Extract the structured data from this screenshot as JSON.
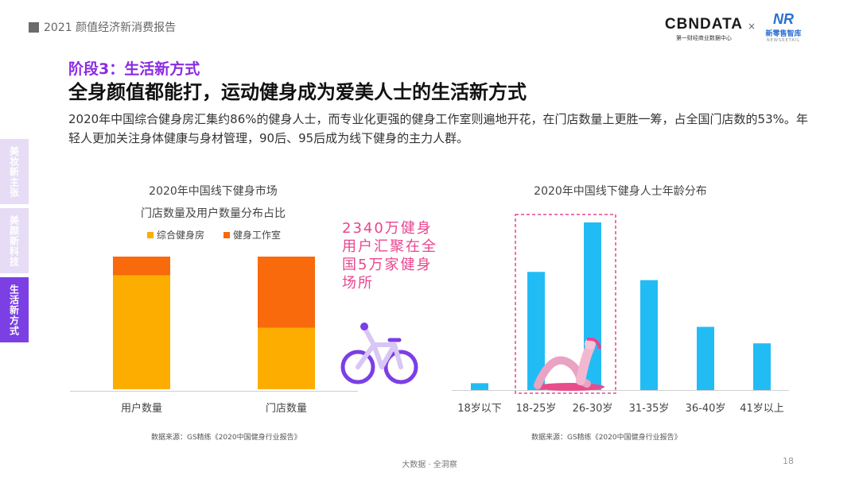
{
  "header": {
    "report_title": "2021 颜值经济新消费报告",
    "logo_main": "CBNDATA",
    "logo_sub": "第一财经商业数据中心",
    "logo_separator": "×",
    "partner_mark": "NR",
    "partner_name": "新零售智库",
    "partner_en": "NEWSRETAIL"
  },
  "side_tabs": [
    {
      "label": "美妆新主张",
      "active": false
    },
    {
      "label": "美颜新科技",
      "active": false
    },
    {
      "label": "生活新方式",
      "active": true
    }
  ],
  "content": {
    "stage": "阶段3：生活新方式",
    "headline": "全身颜值都能打，运动健身成为爱美人士的生活新方式",
    "body": "2020年中国综合健身房汇集约86%的健身人士，而专业化更强的健身工作室则遍地开花，在门店数量上更胜一筹，占全国门店数的53%。年轻人更加关注身体健康与身材管理，90后、95后成为线下健身的主力人群。"
  },
  "callout": "2340万健身用户汇聚在全国5万家健身场所",
  "colors": {
    "gym": "#FCAD00",
    "studio": "#F86A0C",
    "age_bar": "#22BCF5",
    "accent": "#7B3FE4",
    "callout": "#E9458F"
  },
  "chart_data": [
    {
      "type": "bar",
      "stacked": true,
      "title": "2020年中国线下健身市场",
      "subtitle": "门店数量及用户数量分布占比",
      "categories": [
        "用户数量",
        "门店数量"
      ],
      "series": [
        {
          "name": "综合健身房",
          "values": [
            86,
            47
          ]
        },
        {
          "name": "健身工作室",
          "values": [
            14,
            53
          ]
        }
      ],
      "ylim": [
        0,
        100
      ],
      "legend": "top",
      "source": "数据来源：GS精练《2020中国健身行业报告》"
    },
    {
      "type": "bar",
      "title": "2020年中国线下健身人士年龄分布",
      "categories": [
        "18岁以下",
        "18-25岁",
        "26-30岁",
        "31-35岁",
        "36-40岁",
        "41岁以上"
      ],
      "values": [
        2.5,
        43,
        61,
        40,
        23,
        17
      ],
      "highlight": [
        "18-25岁",
        "26-30岁"
      ],
      "source": "数据来源：GS精练《2020中国健身行业报告》"
    }
  ],
  "footer": {
    "tagline": "大数据 · 全洞察",
    "page": "18"
  }
}
